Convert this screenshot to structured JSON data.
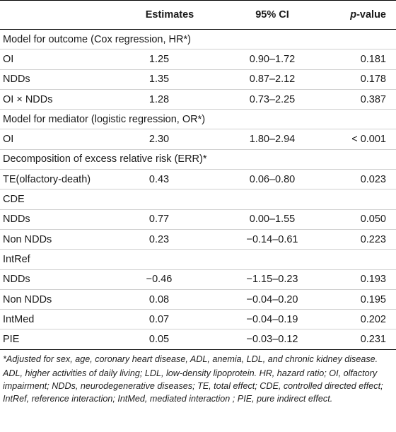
{
  "header": {
    "col_label": "",
    "estimates": "Estimates",
    "ci": "95% CI",
    "pvalue_italic": "p",
    "pvalue_rest": "-value"
  },
  "rows": [
    {
      "type": "section",
      "label": "Model for outcome (Cox regression, HR*)"
    },
    {
      "type": "data",
      "label": "OI",
      "est": "1.25",
      "ci": "0.90–1.72",
      "p": "0.181"
    },
    {
      "type": "data",
      "label": "NDDs",
      "est": "1.35",
      "ci": "0.87–2.12",
      "p": "0.178"
    },
    {
      "type": "data",
      "label": "OI × NDDs",
      "est": "1.28",
      "ci": "0.73–2.25",
      "p": "0.387"
    },
    {
      "type": "section",
      "label": "Model for mediator (logistic regression, OR*)"
    },
    {
      "type": "data",
      "label": "OI",
      "est": "2.30",
      "ci": "1.80–2.94",
      "p": "< 0.001"
    },
    {
      "type": "section",
      "label": "Decomposition of excess relative risk (ERR)*"
    },
    {
      "type": "data",
      "label": "TE(olfactory-death)",
      "est": "0.43",
      "ci": "0.06–0.80",
      "p": "0.023"
    },
    {
      "type": "section",
      "label": "CDE"
    },
    {
      "type": "data",
      "label": "NDDs",
      "est": "0.77",
      "ci": "0.00–1.55",
      "p": "0.050"
    },
    {
      "type": "data",
      "label": "Non NDDs",
      "est": "0.23",
      "ci": "−0.14–0.61",
      "p": "0.223"
    },
    {
      "type": "section",
      "label": "IntRef"
    },
    {
      "type": "data",
      "label": "NDDs",
      "est": "−0.46",
      "ci": "−1.15–0.23",
      "p": "0.193"
    },
    {
      "type": "data",
      "label": "Non NDDs",
      "est": "0.08",
      "ci": "−0.04–0.20",
      "p": "0.195"
    },
    {
      "type": "data",
      "label": "IntMed",
      "est": "0.07",
      "ci": "−0.04–0.19",
      "p": "0.202"
    },
    {
      "type": "data",
      "label": "PIE",
      "est": "0.05",
      "ci": "−0.03–0.12",
      "p": "0.231"
    }
  ],
  "notes": {
    "adjusted": "*Adjusted for sex, age, coronary heart disease, ADL, anemia, LDL, and chronic kidney disease.",
    "abbreviations": "ADL, higher activities of daily living; LDL, low-density lipoprotein. HR, hazard ratio; OI, olfactory impairment; NDDs, neurodegenerative diseases; TE, total effect; CDE, controlled directed effect; IntRef, reference interaction; IntMed, mediated interaction ; PIE, pure indirect effect."
  }
}
